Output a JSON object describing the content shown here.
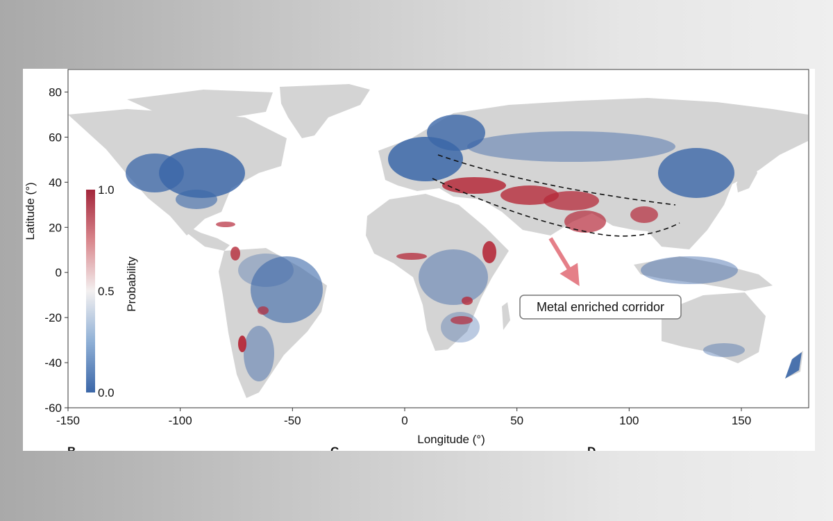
{
  "chart_data": {
    "type": "map",
    "xlabel": "Longitude (°)",
    "ylabel": "Latitude (°)",
    "xlim": [
      -150,
      180
    ],
    "ylim": [
      -60,
      90
    ],
    "x_ticks": [
      "-150",
      "-100",
      "-50",
      "0",
      "50",
      "100",
      "150"
    ],
    "x_tick_values": [
      -150,
      -100,
      -50,
      0,
      50,
      100,
      150
    ],
    "y_ticks": [
      "80",
      "60",
      "40",
      "20",
      "0",
      "-20",
      "-40",
      "-60"
    ],
    "y_tick_values": [
      80,
      60,
      40,
      20,
      0,
      -20,
      -40,
      -60
    ],
    "colorbar": {
      "label": "Probability",
      "ticks": [
        "1.0",
        "0.5",
        "0.0"
      ],
      "tick_values": [
        1.0,
        0.5,
        0.0
      ],
      "colors": {
        "high": "#a3263b",
        "mid": "#f3f0f0",
        "low": "#3b67a8"
      }
    },
    "annotation": {
      "text": "Metal enriched corridor"
    },
    "panel_letters": [
      "B",
      "C",
      "D"
    ],
    "colors": {
      "land_no_data": "#d4d4d4",
      "low_probability": "#3b67a8",
      "high_probability": "#b52a3a"
    }
  }
}
